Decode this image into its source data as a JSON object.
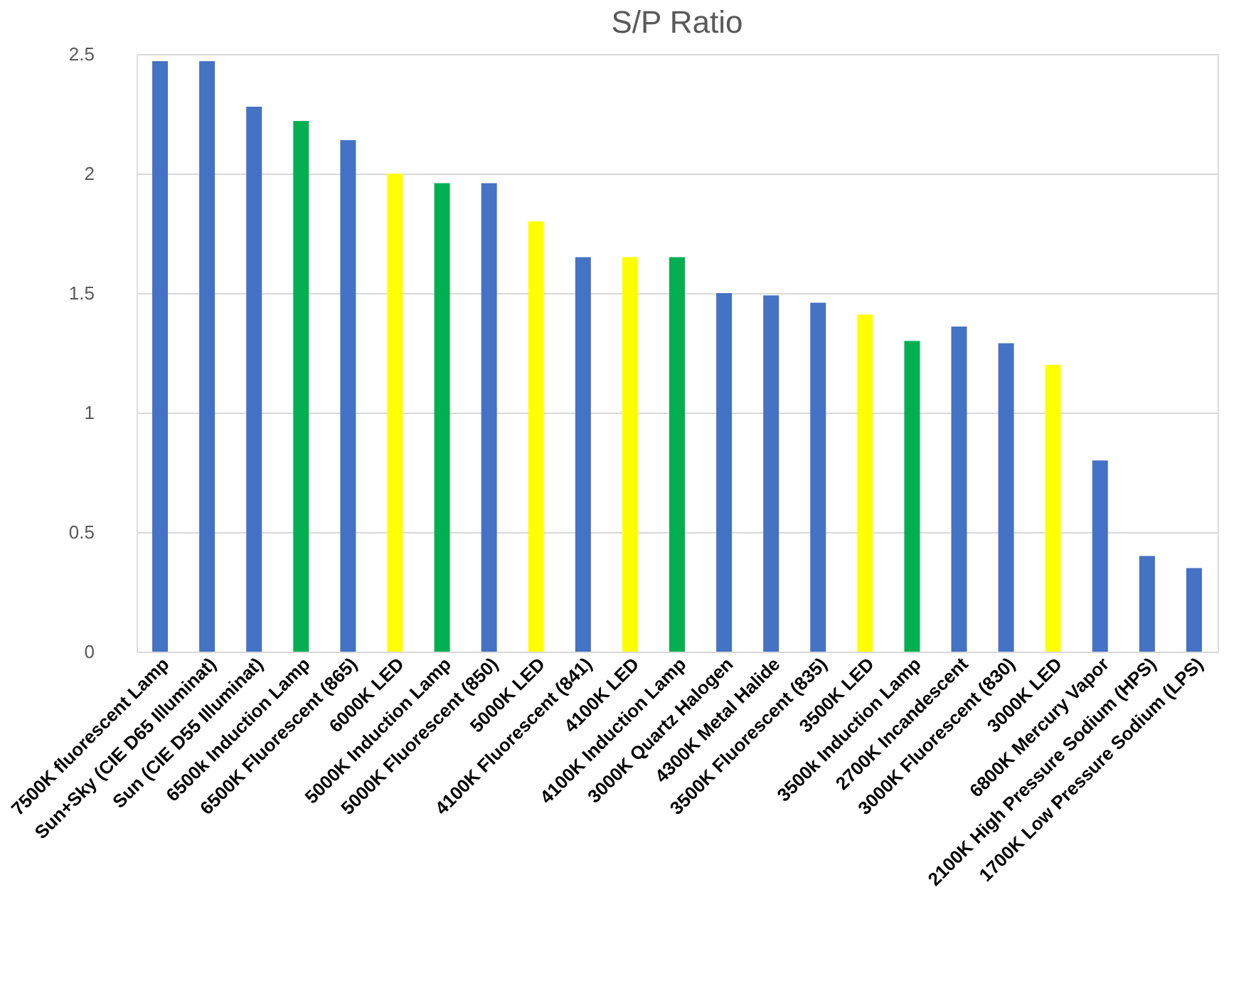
{
  "chart_data": {
    "type": "bar",
    "title": "S/P Ratio",
    "categories": [
      "7500K fluorescent Lamp",
      "Sun+Sky (CIE D65 Illuminat)",
      "Sun (CIE D55 Illuminat)",
      "6500k Induction Lamp",
      "6500K Fluorescent (865)",
      "6000K LED",
      "5000K  Induction Lamp",
      "5000K Fluorescent (850)",
      "5000K LED",
      "4100K Fluorescent (841)",
      "4100K LED",
      "4100K Induction Lamp",
      "3000K Quartz Halogen",
      "4300K Metal Halide",
      "3500K Fluorescent (835)",
      "3500K LED",
      "3500k  Induction Lamp",
      "2700K Incandescent",
      "3000K Fluorescent (830)",
      "3000K LED",
      "6800K Mercury Vapor",
      "2100K High Pressure Sodium (HPS)",
      "1700K Low Pressure Sodium (LPS)"
    ],
    "values": [
      2.47,
      2.47,
      2.28,
      2.22,
      2.14,
      2.0,
      1.96,
      1.96,
      1.8,
      1.65,
      1.65,
      1.65,
      1.5,
      1.49,
      1.46,
      1.41,
      1.3,
      1.36,
      1.29,
      1.2,
      0.8,
      0.4,
      0.35
    ],
    "colors": [
      "#4472c4",
      "#4472c4",
      "#4472c4",
      "#00b050",
      "#4472c4",
      "#ffff00",
      "#00b050",
      "#4472c4",
      "#ffff00",
      "#4472c4",
      "#ffff00",
      "#00b050",
      "#4472c4",
      "#4472c4",
      "#4472c4",
      "#ffff00",
      "#00b050",
      "#4472c4",
      "#4472c4",
      "#ffff00",
      "#4472c4",
      "#4472c4",
      "#4472c4"
    ],
    "ylim": [
      0,
      2.5
    ],
    "yticks": [
      0,
      0.5,
      1,
      1.5,
      2,
      2.5
    ],
    "grid": "y"
  }
}
